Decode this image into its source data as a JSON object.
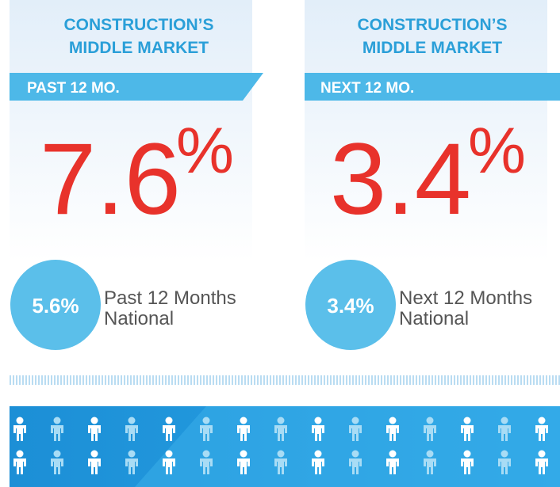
{
  "panels": [
    {
      "heading": [
        "CONSTRUCTION’S",
        "MIDDLE MARKET"
      ],
      "banner": "PAST 12 MO.",
      "value": "7.6",
      "unit": "%",
      "national": "5.6%",
      "national_label": [
        "Past 12 Months",
        "National"
      ]
    },
    {
      "heading": [
        "CONSTRUCTION’S",
        "MIDDLE MARKET"
      ],
      "banner": "NEXT 12 MO.",
      "value": "3.4",
      "unit": "%",
      "national": "3.4%",
      "national_label": [
        "Next 12 Months",
        "National"
      ]
    }
  ]
}
